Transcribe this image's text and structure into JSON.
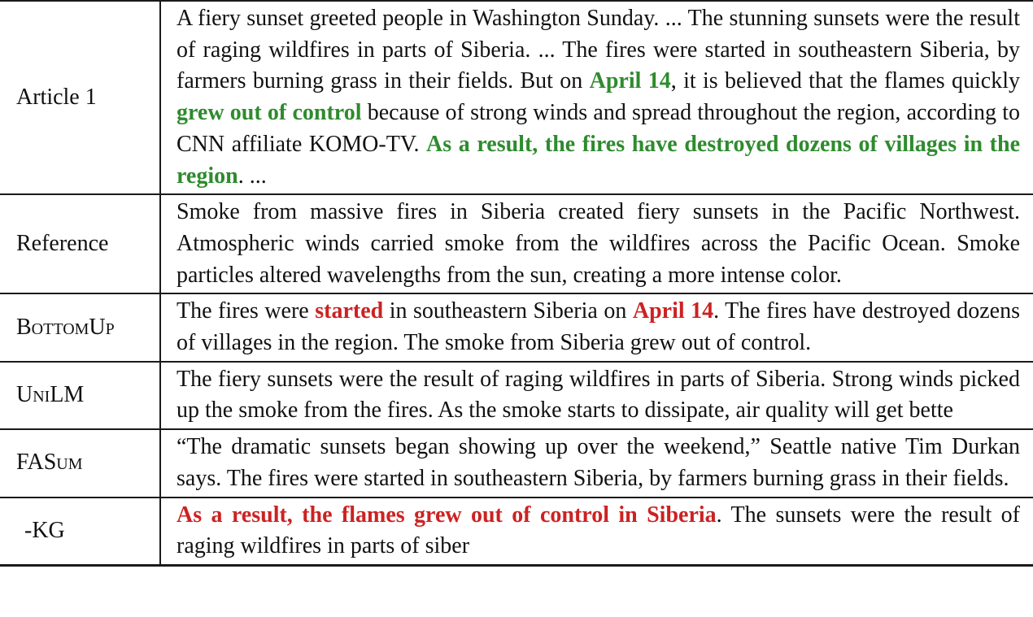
{
  "rows": [
    {
      "label": "Article 1",
      "segments": [
        {
          "text": "A fiery sunset greeted people in Washington Sunday.  ...  The stunning sunsets were the result of raging wildfires in parts of Siberia. ... The fires were started in southeastern Siberia, by farmers burning grass in their fields. But on ",
          "style": "plain"
        },
        {
          "text": "April 14",
          "style": "green"
        },
        {
          "text": ", it is believed that the flames quickly ",
          "style": "plain"
        },
        {
          "text": "grew out of control",
          "style": "green"
        },
        {
          "text": " because of strong winds and spread throughout the region, according to CNN affiliate KOMO-TV. ",
          "style": "plain"
        },
        {
          "text": "As a result, the fires have destroyed dozens of villages in the region",
          "style": "green"
        },
        {
          "text": ". ...",
          "style": "plain"
        }
      ]
    },
    {
      "label": "Reference",
      "segments": [
        {
          "text": "Smoke from massive fires in Siberia created fiery sunsets in the Pacific Northwest. Atmospheric winds carried smoke from the wildfires across the Pacific Ocean. Smoke particles altered wavelengths from the sun, creating a more intense color.",
          "style": "plain"
        }
      ]
    },
    {
      "label": "BottomUp",
      "segments": [
        {
          "text": "The fires were ",
          "style": "plain"
        },
        {
          "text": "started",
          "style": "red"
        },
        {
          "text": " in southeastern Siberia on ",
          "style": "plain"
        },
        {
          "text": "April 14",
          "style": "red"
        },
        {
          "text": ". The fires have destroyed dozens of villages in the region. The smoke from Siberia grew out of control.",
          "style": "plain"
        }
      ]
    },
    {
      "label": "UniLM",
      "segments": [
        {
          "text": "The fiery sunsets were the result of raging wildfires in parts of Siberia. Strong winds picked up the smoke from the fires. As the smoke starts to dissipate, air quality will get bette",
          "style": "plain"
        }
      ]
    },
    {
      "label": "FASum",
      "segments": [
        {
          "text": "“The dramatic sunsets began showing up over the weekend,” Seattle native Tim Durkan says. The fires were started in southeastern Siberia, by farmers burning grass in their fields.",
          "style": "plain"
        }
      ]
    },
    {
      "label": "-KG",
      "segments": [
        {
          "text": "As a result, the flames grew out of control in Siberia",
          "style": "red"
        },
        {
          "text": ". The sunsets were the result of raging wildfires in parts of siber",
          "style": "plain"
        }
      ]
    }
  ]
}
